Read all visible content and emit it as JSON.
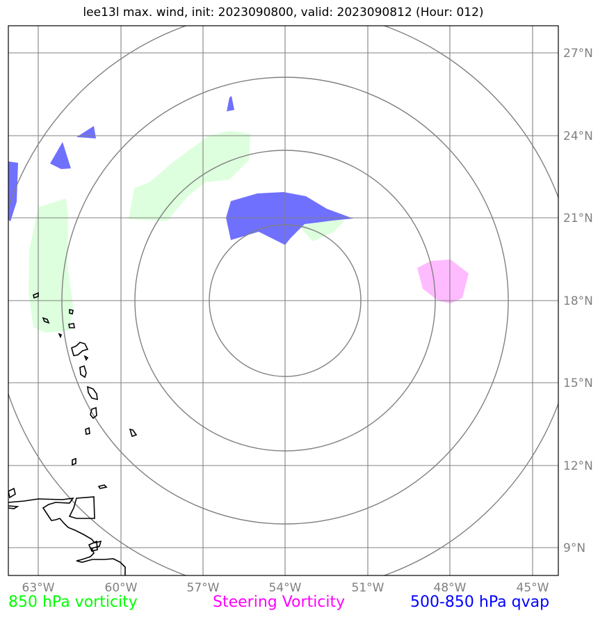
{
  "title": "lee13l max. wind, init: 2023090800, valid: 2023090812 (Hour: 012)",
  "lon_labels": [
    "63°W",
    "60°W",
    "57°W",
    "54°W",
    "51°W",
    "48°W",
    "45°W"
  ],
  "lat_labels": [
    "27°N",
    "24°N",
    "21°N",
    "18°N",
    "15°N",
    "12°N",
    "9°N"
  ],
  "legend": {
    "green": "850 hPa vorticity",
    "magenta": "Steering Vorticity",
    "blue": "500-850 hPa qvap"
  },
  "colors": {
    "vorticity_850": "#ddffdd",
    "steering_vorticity": "#ffbbff",
    "qvap": "#7070ff",
    "grid": "#808080",
    "coast": "#000000"
  },
  "storm_center": {
    "lon": -54,
    "lat": 18
  }
}
